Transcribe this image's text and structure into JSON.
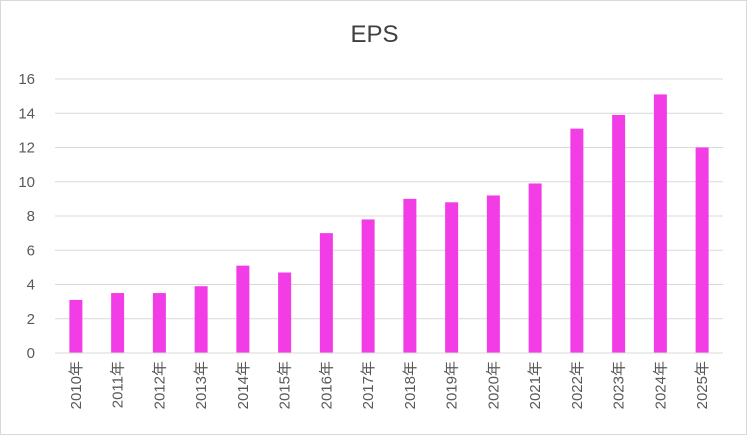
{
  "chart_data": {
    "type": "bar",
    "title": "EPS",
    "xlabel": "",
    "ylabel": "",
    "ylim": [
      0,
      16
    ],
    "yticks": [
      0,
      2,
      4,
      6,
      8,
      10,
      12,
      14,
      16
    ],
    "grid": true,
    "categories": [
      "2010年",
      "2011年",
      "2012年",
      "2013年",
      "2014年",
      "2015年",
      "2016年",
      "2017年",
      "2018年",
      "2019年",
      "2020年",
      "2021年",
      "2022年",
      "2023年",
      "2024年",
      "2025年"
    ],
    "values": [
      3.1,
      3.5,
      3.5,
      3.9,
      5.1,
      4.7,
      7.0,
      7.8,
      9.0,
      8.8,
      9.2,
      9.9,
      13.1,
      13.9,
      15.1,
      12.0
    ],
    "bar_color": "#f23ce6",
    "grid_color": "#d9d9d9"
  }
}
